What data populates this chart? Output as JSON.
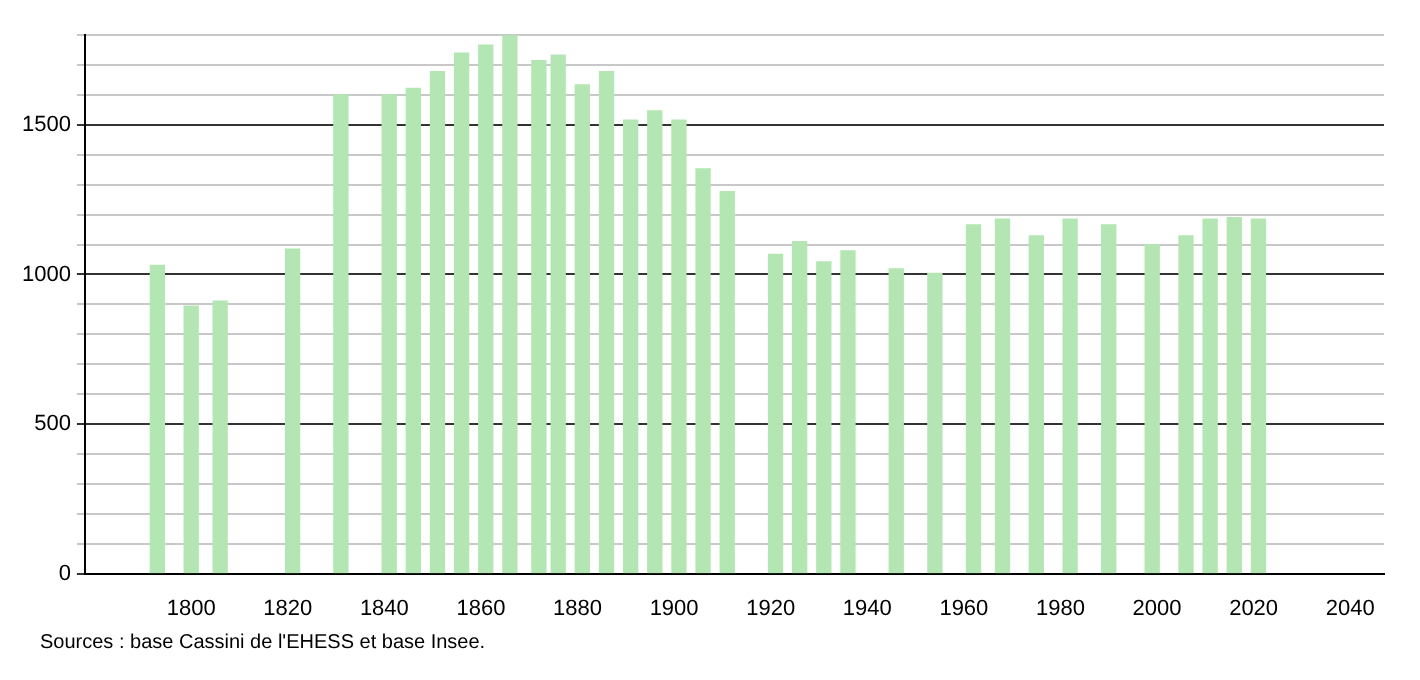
{
  "chart_data": {
    "type": "bar",
    "x": [
      1793,
      1800,
      1806,
      1821,
      1831,
      1841,
      1846,
      1851,
      1856,
      1861,
      1866,
      1872,
      1876,
      1881,
      1886,
      1891,
      1896,
      1901,
      1906,
      1911,
      1921,
      1926,
      1931,
      1936,
      1946,
      1954,
      1962,
      1968,
      1975,
      1982,
      1990,
      1999,
      2006,
      2011,
      2016,
      2021
    ],
    "values": [
      1030,
      894,
      911,
      1085,
      1600,
      1600,
      1622,
      1678,
      1740,
      1767,
      1800,
      1715,
      1733,
      1634,
      1678,
      1516,
      1547,
      1516,
      1353,
      1277,
      1067,
      1110,
      1042,
      1079,
      1019,
      1004,
      1166,
      1185,
      1129,
      1185,
      1166,
      1100,
      1129,
      1185,
      1190,
      1185
    ],
    "color": "#b3e6b3",
    "xlim": [
      1778,
      2047
    ],
    "xticks": [
      1800,
      1820,
      1840,
      1860,
      1880,
      1900,
      1920,
      1940,
      1960,
      1980,
      2000,
      2020,
      2040
    ],
    "ylim": [
      0,
      1800
    ],
    "yticks": [
      0,
      {
        "value": 100,
        "label": null
      },
      {
        "value": 200,
        "label": null
      },
      {
        "value": 300,
        "label": null
      },
      {
        "value": 400,
        "label": null
      },
      500,
      {
        "value": 600,
        "label": null
      },
      {
        "value": 700,
        "label": null
      },
      {
        "value": 800,
        "label": null
      },
      {
        "value": 900,
        "label": null
      },
      1000,
      {
        "value": 1100,
        "label": null
      },
      {
        "value": 1200,
        "label": null
      },
      {
        "value": 1300,
        "label": null
      },
      {
        "value": 1400,
        "label": null
      },
      1500,
      {
        "value": 1600,
        "label": null
      },
      {
        "value": 1700,
        "label": null
      },
      {
        "value": 1800,
        "label": null
      }
    ],
    "grid": "y",
    "annotations": [
      "Sources : base Cassini de l'EHESS et base Insee."
    ]
  }
}
